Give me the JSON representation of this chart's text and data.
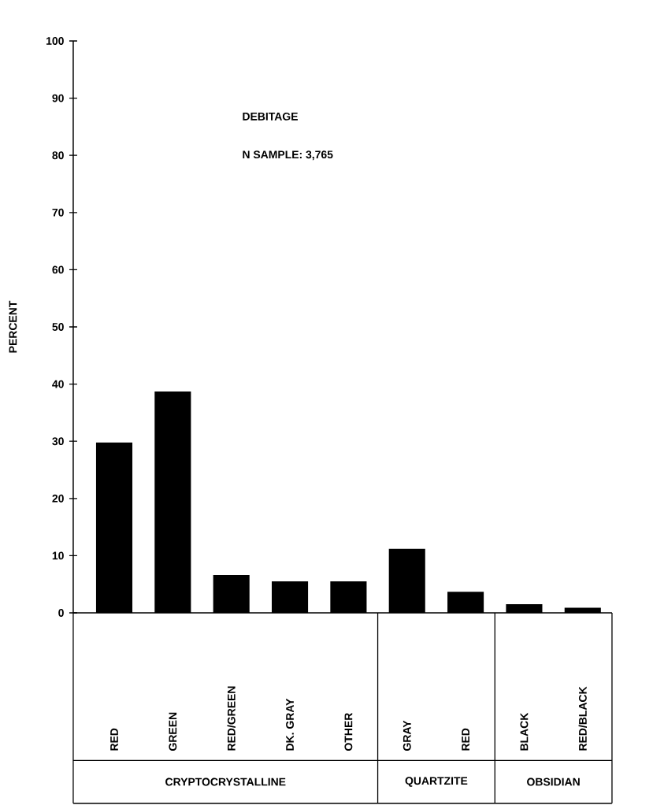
{
  "chart_data": {
    "type": "bar",
    "title": "DEBITAGE",
    "subtitle": "N  SAMPLE: 3,765",
    "ylabel": "PERCENT",
    "categories": [
      "RED",
      "GREEN",
      "RED/GREEN",
      "DK. GRAY",
      "OTHER",
      "GRAY",
      "RED",
      "BLACK",
      "RED/BLACK"
    ],
    "values": [
      29.8,
      38.7,
      6.6,
      5.5,
      5.5,
      11.2,
      3.7,
      1.5,
      0.9
    ],
    "color": "#000000",
    "ylim": [
      0,
      100
    ],
    "yticks": [
      0,
      10,
      20,
      30,
      40,
      50,
      60,
      70,
      80,
      90,
      100
    ],
    "annotations": [
      "CRYPTOCRYSTALLINE",
      "QUARTZITE",
      "OBSIDIAN"
    ],
    "grid": false
  }
}
